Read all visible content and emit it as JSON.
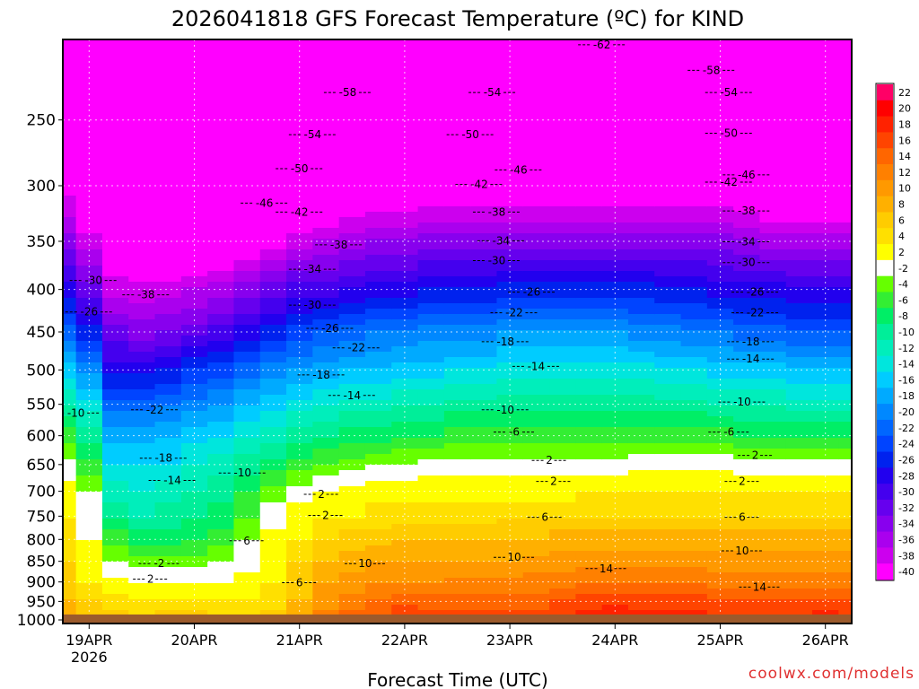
{
  "chart_data": {
    "type": "heatmap",
    "title": "2026041818 GFS Forecast Temperature (ºC) for KIND",
    "xlabel": "Forecast Time (UTC)",
    "ylabel": "",
    "x_range_hours": [
      0,
      180
    ],
    "x_ticks": [
      {
        "label": "19APR",
        "sublabel": "2026",
        "hour": 6
      },
      {
        "label": "20APR",
        "hour": 30
      },
      {
        "label": "21APR",
        "hour": 54
      },
      {
        "label": "22APR",
        "hour": 78
      },
      {
        "label": "23APR",
        "hour": 102
      },
      {
        "label": "24APR",
        "hour": 126
      },
      {
        "label": "25APR",
        "hour": 150
      },
      {
        "label": "26APR",
        "hour": 174
      }
    ],
    "y_ticks": [
      "250",
      "300",
      "350",
      "400",
      "450",
      "500",
      "550",
      "600",
      "650",
      "700",
      "750",
      "800",
      "850",
      "900",
      "950",
      "1000"
    ],
    "y_range_hpa": [
      200,
      1010
    ],
    "ground_pressure_hpa": 985,
    "colorbar": {
      "levels": [
        "22",
        "20",
        "18",
        "16",
        "14",
        "12",
        "10",
        "8",
        "6",
        "4",
        "2",
        "-2",
        "-4",
        "-6",
        "-8",
        "-10",
        "-12",
        "-14",
        "-16",
        "-18",
        "-20",
        "-22",
        "-24",
        "-26",
        "-28",
        "-30",
        "-32",
        "-34",
        "-36",
        "-38",
        "-40"
      ],
      "colors": [
        "#ff0066",
        "#ff0000",
        "#ff2200",
        "#ff4400",
        "#ff6600",
        "#ff8000",
        "#ff9900",
        "#ffb000",
        "#ffcc00",
        "#ffe000",
        "#ffff00",
        "#ffffff",
        "#66ff00",
        "#33ee33",
        "#00ee66",
        "#00ee99",
        "#00eebb",
        "#00e6dd",
        "#00ccff",
        "#00aaff",
        "#0088ff",
        "#0066ff",
        "#0044ff",
        "#0022ee",
        "#2200ee",
        "#4400ee",
        "#6600ee",
        "#8800ee",
        "#aa00ee",
        "#cc00ee",
        "#ff00ff"
      ]
    },
    "column_hours": [
      0,
      6,
      12,
      18,
      24,
      30,
      36,
      42,
      48,
      54,
      60,
      66,
      72,
      78,
      84,
      90,
      96,
      102,
      108,
      114,
      120,
      126,
      132,
      138,
      144,
      150,
      156,
      162,
      168,
      174,
      180
    ],
    "pressure_levels_hpa": [
      250,
      300,
      350,
      400,
      450,
      500,
      550,
      600,
      650,
      700,
      750,
      800,
      850,
      900,
      950,
      1000
    ],
    "temperature_c": [
      [
        -52,
        -56,
        -58,
        -58,
        -58,
        -58,
        -58,
        -56,
        -54,
        -52,
        -52,
        -52,
        -51,
        -51,
        -50,
        -50,
        -50,
        -50,
        -50,
        -50,
        -50,
        -50,
        -50,
        -50,
        -50,
        -50,
        -50,
        -50,
        -50,
        -50,
        -50
      ],
      [
        -40,
        -46,
        -50,
        -50,
        -50,
        -50,
        -50,
        -48,
        -46,
        -44,
        -44,
        -43,
        -42,
        -42,
        -42,
        -42,
        -42,
        -42,
        -42,
        -42,
        -42,
        -42,
        -42,
        -42,
        -42,
        -42,
        -42,
        -44,
        -44,
        -44,
        -44
      ],
      [
        -34,
        -38,
        -42,
        -44,
        -44,
        -44,
        -44,
        -42,
        -40,
        -38,
        -37,
        -36,
        -35,
        -35,
        -34,
        -34,
        -34,
        -34,
        -34,
        -34,
        -34,
        -34,
        -34,
        -34,
        -34,
        -34,
        -35,
        -36,
        -36,
        -36,
        -36
      ],
      [
        -28,
        -32,
        -38,
        -38,
        -38,
        -37,
        -36,
        -34,
        -32,
        -30,
        -30,
        -29,
        -28,
        -28,
        -27,
        -27,
        -27,
        -26,
        -26,
        -26,
        -26,
        -26,
        -26,
        -27,
        -27,
        -28,
        -28,
        -28,
        -29,
        -29,
        -29
      ],
      [
        -22,
        -26,
        -32,
        -34,
        -33,
        -32,
        -30,
        -28,
        -26,
        -24,
        -23,
        -22,
        -21,
        -21,
        -20,
        -20,
        -20,
        -19,
        -19,
        -19,
        -19,
        -19,
        -20,
        -20,
        -21,
        -21,
        -22,
        -22,
        -23,
        -23,
        -23
      ],
      [
        -16,
        -20,
        -28,
        -28,
        -27,
        -25,
        -24,
        -22,
        -20,
        -19,
        -18,
        -17,
        -17,
        -16,
        -16,
        -15,
        -15,
        -14,
        -14,
        -14,
        -14,
        -14,
        -14,
        -15,
        -15,
        -16,
        -16,
        -16,
        -17,
        -17,
        -17
      ],
      [
        -11,
        -14,
        -22,
        -22,
        -21,
        -20,
        -19,
        -17,
        -16,
        -14,
        -13,
        -12,
        -12,
        -11,
        -11,
        -10,
        -10,
        -10,
        -10,
        -10,
        -10,
        -10,
        -10,
        -10,
        -10,
        -11,
        -11,
        -11,
        -12,
        -12,
        -12
      ],
      [
        -6,
        -10,
        -18,
        -18,
        -17,
        -16,
        -15,
        -13,
        -12,
        -10,
        -9,
        -8,
        -8,
        -7,
        -7,
        -6,
        -6,
        -6,
        -6,
        -6,
        -6,
        -6,
        -6,
        -6,
        -6,
        -6,
        -7,
        -7,
        -7,
        -7,
        -7
      ],
      [
        -2,
        -6,
        -15,
        -15,
        -15,
        -13,
        -12,
        -10,
        -8,
        -6,
        -5,
        -4,
        -3,
        -3,
        -2,
        -2,
        -2,
        -2,
        -2,
        -2,
        -2,
        -2,
        -1,
        -1,
        -1,
        -1,
        -2,
        -2,
        -2,
        -2,
        -2
      ],
      [
        1,
        -3,
        -12,
        -13,
        -12,
        -11,
        -10,
        -7,
        -4,
        -2,
        0,
        1,
        2,
        2,
        2,
        2,
        2,
        2,
        2,
        2,
        3,
        3,
        3,
        3,
        3,
        3,
        3,
        3,
        3,
        3,
        3
      ],
      [
        3,
        -1,
        -9,
        -11,
        -10,
        -9,
        -8,
        -5,
        -1,
        2,
        3,
        3,
        4,
        4,
        4,
        4,
        4,
        5,
        5,
        5,
        5,
        5,
        5,
        5,
        5,
        5,
        5,
        5,
        5,
        5,
        5
      ],
      [
        4,
        0,
        -6,
        -8,
        -8,
        -7,
        -6,
        -3,
        1,
        3,
        5,
        6,
        6,
        7,
        7,
        7,
        7,
        7,
        7,
        8,
        8,
        8,
        8,
        8,
        8,
        8,
        8,
        8,
        8,
        8,
        8
      ],
      [
        5,
        1,
        -3,
        -4,
        -4,
        -4,
        -3,
        -1,
        2,
        5,
        7,
        8,
        9,
        9,
        9,
        9,
        9,
        9,
        10,
        10,
        10,
        10,
        10,
        10,
        10,
        10,
        10,
        10,
        10,
        10,
        10
      ],
      [
        6,
        3,
        1,
        0,
        0,
        0,
        0,
        1,
        3,
        6,
        9,
        10,
        11,
        11,
        11,
        12,
        12,
        12,
        12,
        12,
        13,
        13,
        13,
        13,
        13,
        12,
        12,
        12,
        12,
        12,
        12
      ],
      [
        7,
        5,
        4,
        3,
        4,
        4,
        3,
        3,
        4,
        7,
        10,
        12,
        13,
        14,
        14,
        14,
        14,
        14,
        14,
        15,
        16,
        16,
        16,
        16,
        16,
        15,
        15,
        15,
        15,
        15,
        15
      ],
      [
        8,
        7,
        6,
        6,
        6,
        6,
        5,
        5,
        6,
        8,
        12,
        14,
        16,
        18,
        16,
        16,
        16,
        16,
        16,
        18,
        19,
        20,
        19,
        18,
        18,
        17,
        17,
        17,
        18,
        19,
        18
      ]
    ],
    "contour_labels": [
      {
        "text": "-62",
        "hour": 123,
        "hpa": 205
      },
      {
        "text": "-58",
        "hour": 65,
        "hpa": 234
      },
      {
        "text": "-58",
        "hour": 148,
        "hpa": 220
      },
      {
        "text": "-54",
        "hour": 98,
        "hpa": 234
      },
      {
        "text": "-54",
        "hour": 152,
        "hpa": 234
      },
      {
        "text": "-54",
        "hour": 57,
        "hpa": 263
      },
      {
        "text": "-50",
        "hour": 93,
        "hpa": 263
      },
      {
        "text": "-50",
        "hour": 152,
        "hpa": 262
      },
      {
        "text": "-50",
        "hour": 54,
        "hpa": 289
      },
      {
        "text": "-46",
        "hour": 104,
        "hpa": 290
      },
      {
        "text": "-46",
        "hour": 156,
        "hpa": 294
      },
      {
        "text": "-42",
        "hour": 95,
        "hpa": 302
      },
      {
        "text": "-42",
        "hour": 152,
        "hpa": 300
      },
      {
        "text": "-46",
        "hour": 46,
        "hpa": 318
      },
      {
        "text": "-42",
        "hour": 54,
        "hpa": 326
      },
      {
        "text": "-38",
        "hour": 99,
        "hpa": 326
      },
      {
        "text": "-38",
        "hour": 156,
        "hpa": 325
      },
      {
        "text": "-38",
        "hour": 63,
        "hpa": 357
      },
      {
        "text": "-34",
        "hour": 100,
        "hpa": 353
      },
      {
        "text": "-34",
        "hour": 156,
        "hpa": 354
      },
      {
        "text": "-34",
        "hour": 57,
        "hpa": 382
      },
      {
        "text": "-30",
        "hour": 99,
        "hpa": 373
      },
      {
        "text": "-30",
        "hour": 156,
        "hpa": 375
      },
      {
        "text": "-30",
        "hour": 7,
        "hpa": 394
      },
      {
        "text": "-38",
        "hour": 19,
        "hpa": 410
      },
      {
        "text": "-26",
        "hour": 107,
        "hpa": 407
      },
      {
        "text": "-26",
        "hour": 158,
        "hpa": 407
      },
      {
        "text": "-30",
        "hour": 57,
        "hpa": 422
      },
      {
        "text": "-26",
        "hour": 6,
        "hpa": 430
      },
      {
        "text": "-22",
        "hour": 103,
        "hpa": 431
      },
      {
        "text": "-22",
        "hour": 158,
        "hpa": 431
      },
      {
        "text": "-26",
        "hour": 61,
        "hpa": 450
      },
      {
        "text": "-18",
        "hour": 101,
        "hpa": 467
      },
      {
        "text": "-18",
        "hour": 157,
        "hpa": 467
      },
      {
        "text": "-22",
        "hour": 67,
        "hpa": 475
      },
      {
        "text": "-14",
        "hour": 157,
        "hpa": 490
      },
      {
        "text": "-14",
        "hour": 108,
        "hpa": 500
      },
      {
        "text": "-18",
        "hour": 59,
        "hpa": 512
      },
      {
        "text": "-14",
        "hour": 66,
        "hpa": 542
      },
      {
        "text": "-10",
        "hour": 155,
        "hpa": 552
      },
      {
        "text": "-10",
        "hour": 3,
        "hpa": 569
      },
      {
        "text": "-22",
        "hour": 21,
        "hpa": 564
      },
      {
        "text": "-10",
        "hour": 101,
        "hpa": 564
      },
      {
        "text": "-6",
        "hour": 152,
        "hpa": 600
      },
      {
        "text": "-6",
        "hour": 103,
        "hpa": 600
      },
      {
        "text": "-18",
        "hour": 23,
        "hpa": 645
      },
      {
        "text": "2",
        "hour": 158,
        "hpa": 640
      },
      {
        "text": "2",
        "hour": 111,
        "hpa": 649
      },
      {
        "text": "-10",
        "hour": 41,
        "hpa": 672
      },
      {
        "text": "-14",
        "hour": 25,
        "hpa": 686
      },
      {
        "text": "2",
        "hour": 112,
        "hpa": 688
      },
      {
        "text": "2",
        "hour": 155,
        "hpa": 688
      },
      {
        "text": "2",
        "hour": 59,
        "hpa": 713
      },
      {
        "text": "6",
        "hour": 110,
        "hpa": 760
      },
      {
        "text": "6",
        "hour": 155,
        "hpa": 760
      },
      {
        "text": "2",
        "hour": 60,
        "hpa": 756
      },
      {
        "text": "6",
        "hour": 42,
        "hpa": 811
      },
      {
        "text": "10",
        "hour": 103,
        "hpa": 849
      },
      {
        "text": "10",
        "hour": 155,
        "hpa": 834
      },
      {
        "text": "-2",
        "hour": 22,
        "hpa": 864
      },
      {
        "text": "10",
        "hour": 69,
        "hpa": 864
      },
      {
        "text": "2",
        "hour": 20,
        "hpa": 902
      },
      {
        "text": "6",
        "hour": 54,
        "hpa": 911
      },
      {
        "text": "14",
        "hour": 124,
        "hpa": 876
      },
      {
        "text": "14",
        "hour": 159,
        "hpa": 922
      }
    ]
  },
  "watermark": "coolwx.com/models"
}
